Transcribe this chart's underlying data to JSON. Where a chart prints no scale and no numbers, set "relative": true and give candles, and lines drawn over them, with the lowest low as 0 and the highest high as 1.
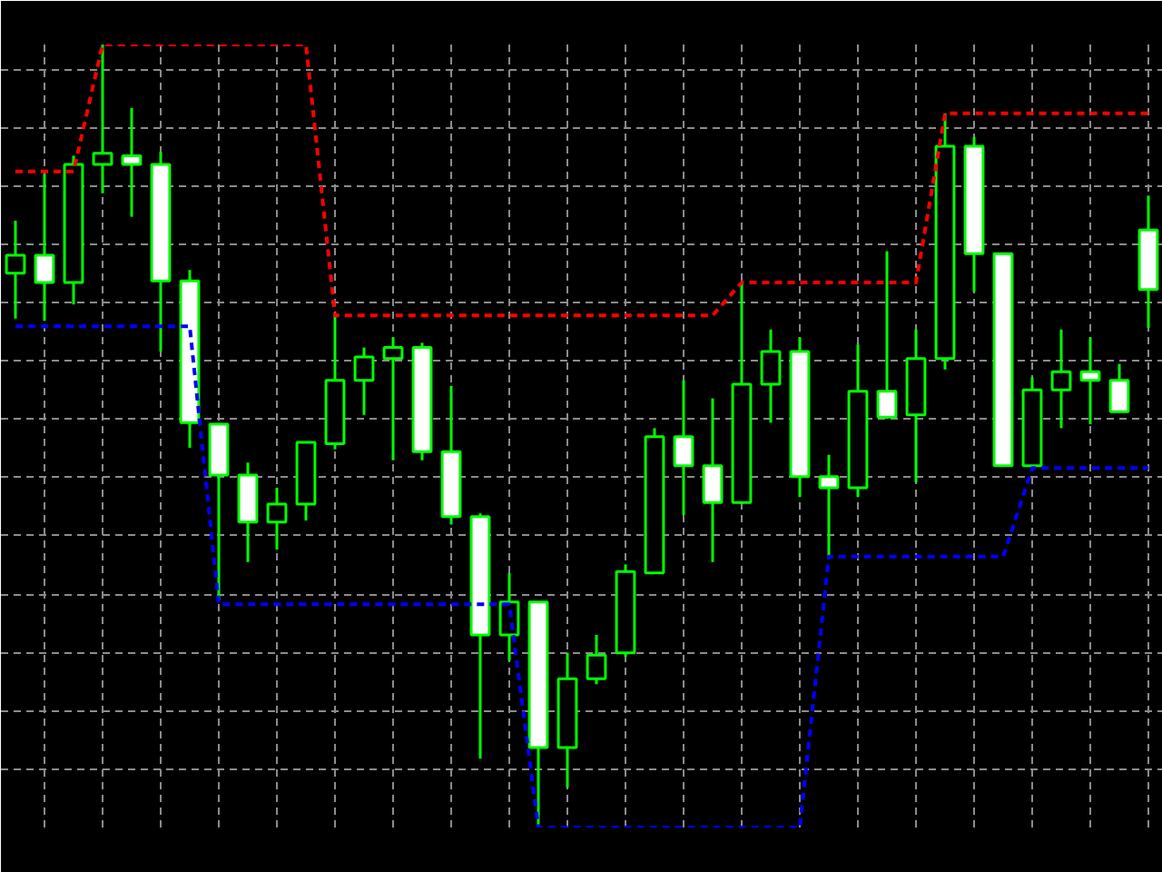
{
  "chart_data": {
    "type": "candlestick",
    "relative": true,
    "grid": true,
    "categories": [
      null,
      null,
      null,
      null,
      null,
      null,
      null,
      null,
      null,
      null,
      null,
      null,
      null,
      null,
      null,
      null,
      null,
      null,
      null,
      null,
      null,
      null,
      null,
      null,
      null,
      null,
      null,
      null,
      null,
      null,
      null,
      null,
      null,
      null,
      null,
      null,
      null,
      null,
      null,
      null
    ],
    "ohlc": [
      [
        0.708,
        0.775,
        0.65,
        0.731
      ],
      [
        0.731,
        0.835,
        0.647,
        0.696
      ],
      [
        0.696,
        0.858,
        0.668,
        0.847
      ],
      [
        0.847,
        1.0,
        0.81,
        0.861
      ],
      [
        0.858,
        0.919,
        0.78,
        0.847
      ],
      [
        0.847,
        0.863,
        0.608,
        0.698
      ],
      [
        0.698,
        0.712,
        0.485,
        0.517
      ],
      [
        0.515,
        0.515,
        0.29,
        0.45
      ],
      [
        0.45,
        0.466,
        0.339,
        0.39
      ],
      [
        0.39,
        0.434,
        0.355,
        0.413
      ],
      [
        0.413,
        0.492,
        0.392,
        0.492
      ],
      [
        0.49,
        0.657,
        0.483,
        0.571
      ],
      [
        0.571,
        0.613,
        0.527,
        0.601
      ],
      [
        0.599,
        0.626,
        0.469,
        0.613
      ],
      [
        0.613,
        0.619,
        0.469,
        0.48
      ],
      [
        0.48,
        0.564,
        0.387,
        0.397
      ],
      [
        0.397,
        0.401,
        0.088,
        0.246
      ],
      [
        0.246,
        0.325,
        0.213,
        0.288
      ],
      [
        0.288,
        0.288,
        0.0,
        0.102
      ],
      [
        0.102,
        0.223,
        0.051,
        0.19
      ],
      [
        0.19,
        0.246,
        0.183,
        0.22
      ],
      [
        0.223,
        0.336,
        0.218,
        0.327
      ],
      [
        0.325,
        0.51,
        0.325,
        0.499
      ],
      [
        0.499,
        0.571,
        0.399,
        0.462
      ],
      [
        0.462,
        0.548,
        0.339,
        0.415
      ],
      [
        0.415,
        0.696,
        0.413,
        0.566
      ],
      [
        0.566,
        0.636,
        0.517,
        0.608
      ],
      [
        0.608,
        0.626,
        0.422,
        0.448
      ],
      [
        0.448,
        0.476,
        0.346,
        0.434
      ],
      [
        0.434,
        0.617,
        0.422,
        0.557
      ],
      [
        0.557,
        0.736,
        0.522,
        0.524
      ],
      [
        0.527,
        0.636,
        0.441,
        0.599
      ],
      [
        0.599,
        0.912,
        0.585,
        0.87
      ],
      [
        0.87,
        0.882,
        0.684,
        0.733
      ],
      [
        0.733,
        0.733,
        0.462,
        0.462
      ],
      [
        0.462,
        0.575,
        0.459,
        0.559
      ],
      [
        0.559,
        0.636,
        0.51,
        0.582
      ],
      [
        0.582,
        0.626,
        0.515,
        0.571
      ],
      [
        0.571,
        0.592,
        0.531,
        0.531
      ],
      [
        0.763,
        0.807,
        0.638,
        0.687
      ]
    ],
    "series": [
      {
        "type": "line",
        "color": "#ff0000",
        "line_style": "dashed",
        "values": [
          0.838,
          0.838,
          0.838,
          1.0,
          1.0,
          1.0,
          1.0,
          1.0,
          1.0,
          1.0,
          1.0,
          0.654,
          0.654,
          0.654,
          0.654,
          0.654,
          0.654,
          0.654,
          0.654,
          0.654,
          0.654,
          0.654,
          0.654,
          0.654,
          0.654,
          0.696,
          0.696,
          0.696,
          0.696,
          0.696,
          0.696,
          0.696,
          0.912,
          0.912,
          0.912,
          0.912,
          0.912,
          0.912,
          0.912,
          0.912
        ]
      },
      {
        "type": "line",
        "color": "#0000ff",
        "line_style": "dashed",
        "values": [
          0.64,
          0.64,
          0.64,
          0.64,
          0.64,
          0.64,
          0.64,
          0.285,
          0.285,
          0.285,
          0.285,
          0.285,
          0.285,
          0.285,
          0.285,
          0.285,
          0.285,
          0.285,
          0.0,
          0.0,
          0.0,
          0.0,
          0.0,
          0.0,
          0.0,
          0.0,
          0.0,
          0.0,
          0.346,
          0.346,
          0.346,
          0.346,
          0.346,
          0.346,
          0.346,
          0.459,
          0.459,
          0.459,
          0.459,
          0.459
        ]
      }
    ]
  }
}
